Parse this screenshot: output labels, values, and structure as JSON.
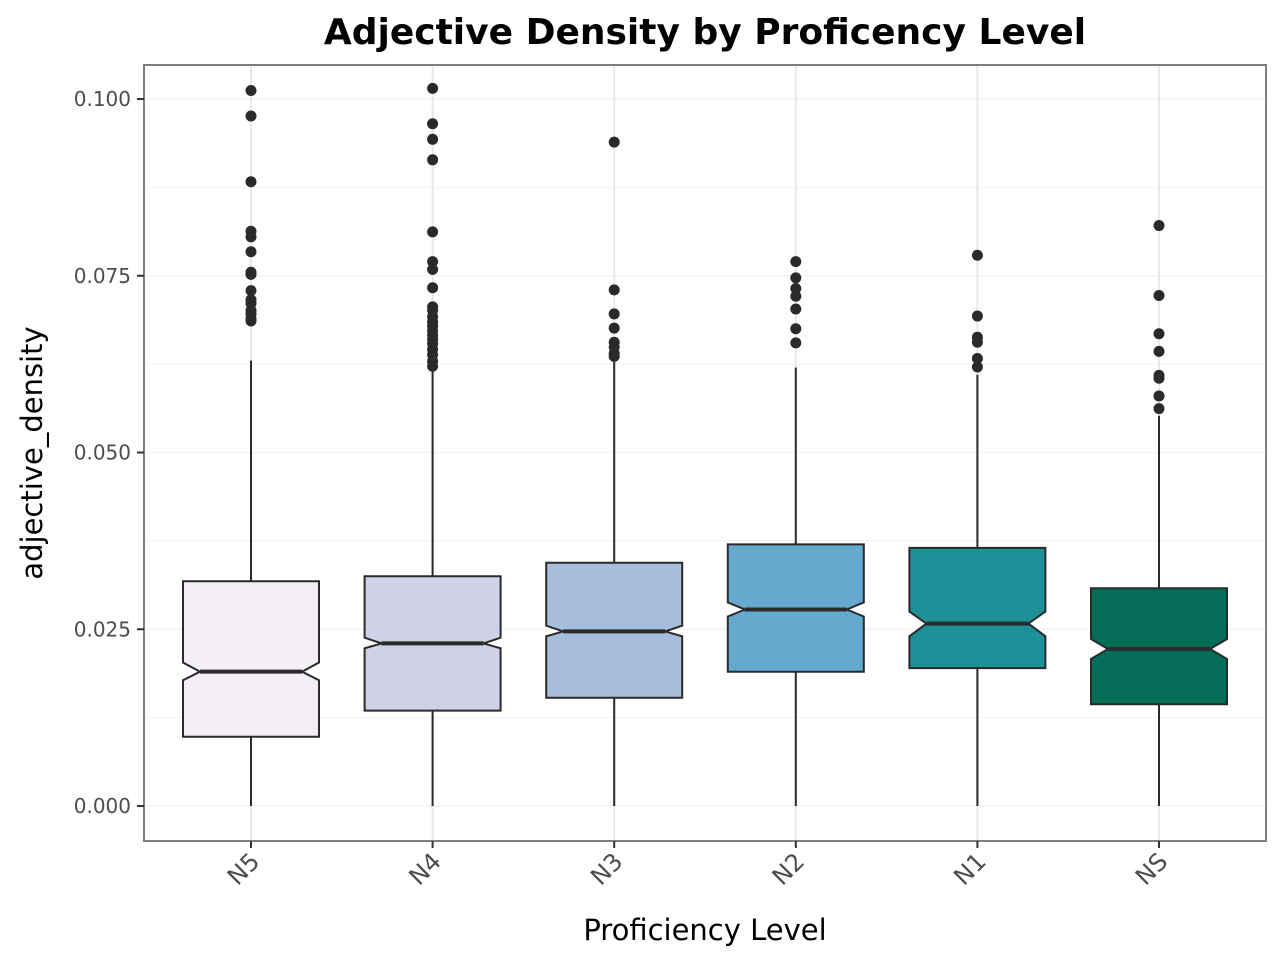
{
  "chart_data": {
    "type": "boxplot",
    "notched": true,
    "title": "Adjective Density by Proficency Level",
    "xlabel": "Proficiency Level",
    "ylabel": "adjective_density",
    "ylim": [
      -0.005,
      0.105
    ],
    "yticks": [
      0.0,
      0.025,
      0.05,
      0.075,
      0.1
    ],
    "ytick_labels": [
      "0.000",
      "0.025",
      "0.050",
      "0.075",
      "0.100"
    ],
    "grid": true,
    "legend": "none",
    "categories": [
      "N5",
      "N4",
      "N3",
      "N2",
      "N1",
      "NS"
    ],
    "boxes": [
      {
        "category": "N5",
        "whisker_low": 0.0,
        "q1": 0.0098,
        "median": 0.019,
        "q3": 0.0318,
        "whisker_high": 0.063,
        "notch_low": 0.0178,
        "notch_high": 0.0203,
        "outliers": [
          0.1012,
          0.0976,
          0.0883,
          0.0813,
          0.0805,
          0.0784,
          0.0755,
          0.0752,
          0.0729,
          0.0716,
          0.0711,
          0.0701,
          0.0696,
          0.0689,
          0.0686
        ],
        "fill": "#f4eef6"
      },
      {
        "category": "N4",
        "whisker_low": 0.0,
        "q1": 0.0135,
        "median": 0.023,
        "q3": 0.0325,
        "whisker_high": 0.0615,
        "notch_low": 0.0223,
        "notch_high": 0.0238,
        "outliers": [
          0.1015,
          0.0965,
          0.0943,
          0.0914,
          0.0812,
          0.077,
          0.0759,
          0.0733,
          0.0706,
          0.0701,
          0.0692,
          0.0685,
          0.0679,
          0.0672,
          0.0666,
          0.066,
          0.0654,
          0.0646,
          0.0638,
          0.0629,
          0.0622
        ],
        "fill": "#cfd1e6"
      },
      {
        "category": "N3",
        "whisker_low": 0.0,
        "q1": 0.0153,
        "median": 0.0247,
        "q3": 0.0344,
        "whisker_high": 0.0634,
        "notch_low": 0.024,
        "notch_high": 0.0255,
        "outliers": [
          0.0939,
          0.073,
          0.0696,
          0.0676,
          0.0656,
          0.0649,
          0.064,
          0.0636
        ],
        "fill": "#a6bddc"
      },
      {
        "category": "N2",
        "whisker_low": 0.0,
        "q1": 0.019,
        "median": 0.0278,
        "q3": 0.037,
        "whisker_high": 0.062,
        "notch_low": 0.0268,
        "notch_high": 0.0288,
        "outliers": [
          0.077,
          0.0747,
          0.0732,
          0.0721,
          0.0703,
          0.0675,
          0.0655
        ],
        "fill": "#65a9cf"
      },
      {
        "category": "N1",
        "whisker_low": 0.0,
        "q1": 0.0195,
        "median": 0.0258,
        "q3": 0.0365,
        "whisker_high": 0.061,
        "notch_low": 0.024,
        "notch_high": 0.0275,
        "outliers": [
          0.0779,
          0.0693,
          0.0663,
          0.0656,
          0.0633,
          0.0621
        ],
        "fill": "#1e9098"
      },
      {
        "category": "NS",
        "whisker_low": 0.0,
        "q1": 0.0144,
        "median": 0.0222,
        "q3": 0.0308,
        "whisker_high": 0.0552,
        "notch_low": 0.0208,
        "notch_high": 0.0236,
        "outliers": [
          0.0821,
          0.0722,
          0.0668,
          0.0643,
          0.0609,
          0.0605,
          0.058,
          0.0562
        ],
        "fill": "#036d57"
      }
    ],
    "colors": {
      "stroke": "#2a2a2a",
      "outlier": "#2a2a2a",
      "grid_major": "#e6e6e6",
      "grid_minor": "#f2f2f2",
      "panel_border": "#7f7f7f"
    }
  }
}
